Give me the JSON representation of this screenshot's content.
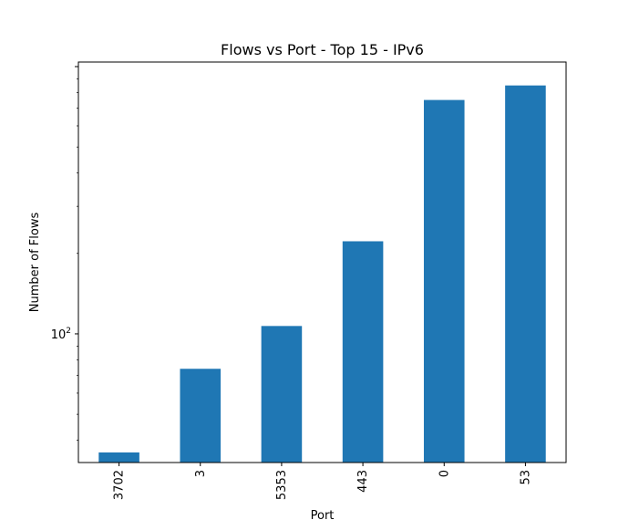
{
  "chart_data": {
    "type": "bar",
    "title": "Flows vs Port - Top 15 - IPv6",
    "xlabel": "Port",
    "ylabel": "Number of Flows",
    "categories": [
      "3702",
      "3",
      "5353",
      "443",
      "0",
      "53"
    ],
    "values": [
      36,
      74,
      107,
      222,
      750,
      850
    ],
    "yscale": "log",
    "ylim": [
      33,
      1040
    ],
    "yticks_major": [
      {
        "value": 100,
        "base": "10",
        "exp": "2"
      }
    ],
    "grid": false,
    "legend": "none",
    "bar_color": "#1f77b4"
  }
}
